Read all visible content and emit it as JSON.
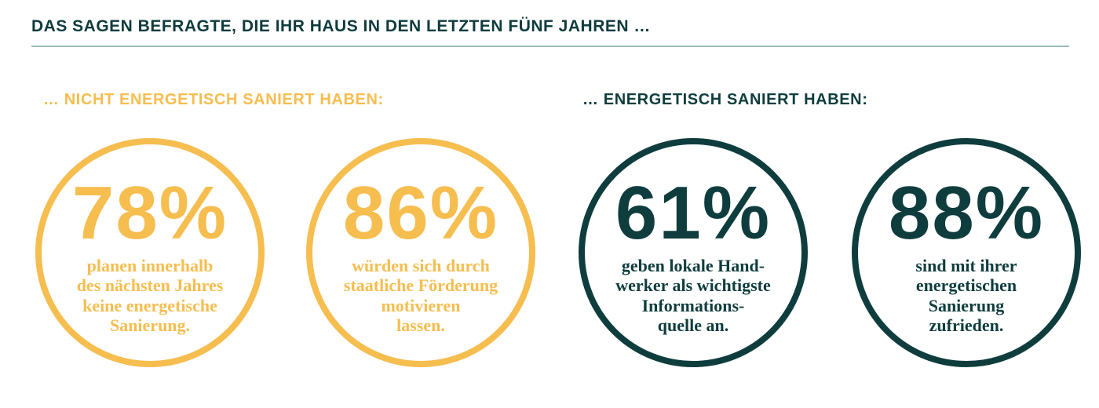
{
  "colors": {
    "yellow": "#f6bd4f",
    "teal": "#0f3d3e",
    "rule": "#9dbcbc"
  },
  "title": "DAS SAGEN BEFRAGTE, DIE IHR HAUS IN DEN LETZTEN FÜNF JAHREN …",
  "groups": [
    {
      "heading": "… NICHT ENERGETISCH SANIERT HABEN:"
    },
    {
      "heading": "… ENERGETISCH SANIERT HABEN:"
    }
  ],
  "stats": [
    {
      "value": "78%",
      "lines": [
        "planen innerhalb",
        "des nächsten Jahres",
        "keine energetische",
        "Sanierung."
      ]
    },
    {
      "value": "86%",
      "lines": [
        "würden sich durch",
        "staatliche Förderung",
        "motivieren",
        "lassen."
      ]
    },
    {
      "value": "61%",
      "lines": [
        "geben lokale Hand-",
        "werker als wichtigste",
        "Informations-",
        "quelle an."
      ]
    },
    {
      "value": "88%",
      "lines": [
        "sind mit ihrer",
        "energetischen",
        "Sanierung",
        "zufrieden."
      ]
    }
  ]
}
